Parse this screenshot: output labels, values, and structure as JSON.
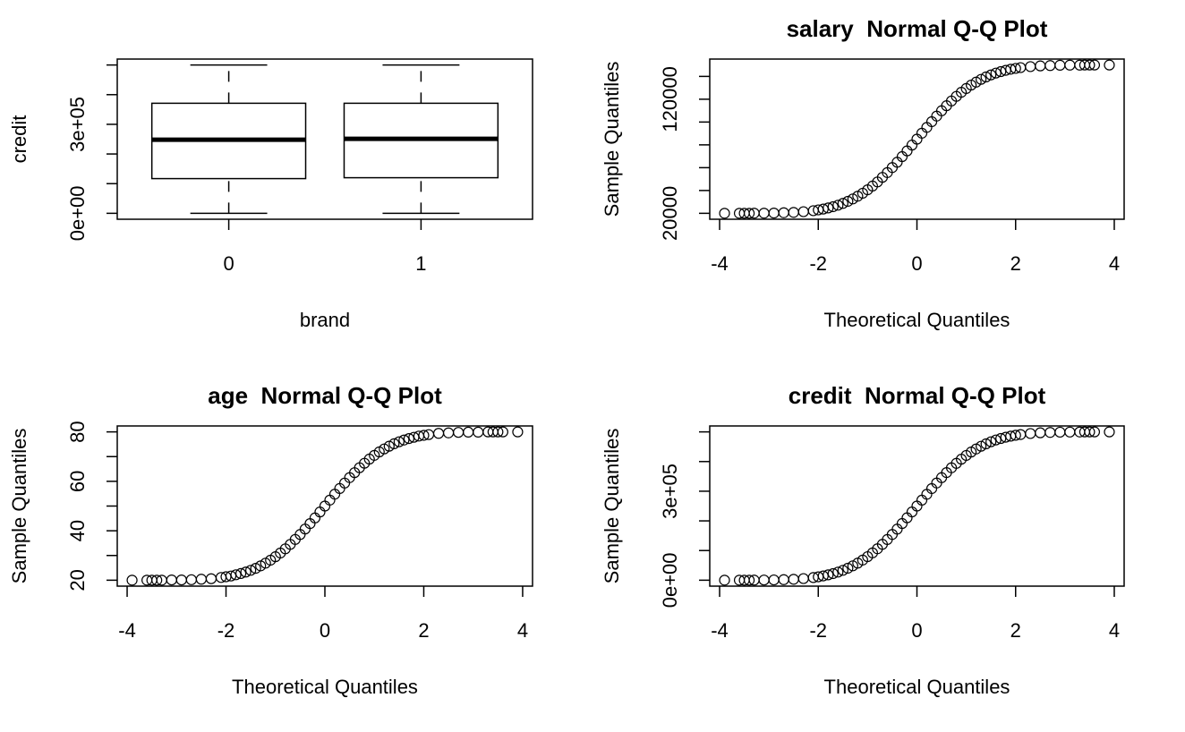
{
  "chart_data": [
    {
      "type": "box",
      "xlabel": "brand",
      "ylabel": "credit",
      "categories": [
        "0",
        "1"
      ],
      "boxes": [
        {
          "min": 0,
          "q1": 117000,
          "median": 248000,
          "q3": 371000,
          "max": 500000
        },
        {
          "min": 0,
          "q1": 120000,
          "median": 251000,
          "q3": 371000,
          "max": 500000
        }
      ],
      "ylim": [
        -20000,
        520000
      ],
      "yticks": [
        {
          "value": 0,
          "label": "0e+00"
        },
        {
          "value": 100000,
          "label": null
        },
        {
          "value": 200000,
          "label": null
        },
        {
          "value": 300000,
          "label": "3e+05"
        },
        {
          "value": 400000,
          "label": null
        },
        {
          "value": 500000,
          "label": null
        }
      ]
    },
    {
      "type": "scatter",
      "title": "salary  Normal Q-Q Plot",
      "xlabel": "Theoretical Quantiles",
      "ylabel": "Sample Quantiles",
      "x": [
        -3.9,
        -3.6,
        -3.5,
        -3.4,
        -3.3,
        -3.1,
        -2.9,
        -2.7,
        -2.5,
        -2.3,
        -2.1,
        -2.0,
        -1.9,
        -1.8,
        -1.7,
        -1.6,
        -1.5,
        -1.4,
        -1.3,
        -1.2,
        -1.1,
        -1.0,
        -0.9,
        -0.8,
        -0.7,
        -0.6,
        -0.5,
        -0.4,
        -0.3,
        -0.2,
        -0.1,
        0,
        0.1,
        0.2,
        0.3,
        0.4,
        0.5,
        0.6,
        0.7,
        0.8,
        0.9,
        1.0,
        1.1,
        1.2,
        1.3,
        1.4,
        1.5,
        1.6,
        1.7,
        1.8,
        1.9,
        2.0,
        2.1,
        2.3,
        2.5,
        2.7,
        2.9,
        3.1,
        3.3,
        3.4,
        3.5,
        3.6,
        3.9
      ],
      "values": [
        20000,
        20000,
        20000,
        20000,
        20100,
        20100,
        20200,
        20500,
        20800,
        21400,
        22300,
        23000,
        23700,
        24700,
        25800,
        27100,
        28700,
        30500,
        32600,
        35000,
        37600,
        40600,
        43900,
        47500,
        51500,
        55700,
        60100,
        64800,
        69700,
        74700,
        79800,
        85000,
        90200,
        95300,
        100300,
        105200,
        109900,
        114300,
        118500,
        122500,
        126100,
        129400,
        132400,
        135000,
        137400,
        139500,
        141300,
        142900,
        144200,
        145300,
        146300,
        147000,
        147700,
        148600,
        149200,
        149500,
        149800,
        149900,
        149900,
        150000,
        150000,
        150000,
        150000
      ],
      "xlim": [
        -4.2,
        4.2
      ],
      "xticks": [
        -4,
        -2,
        0,
        2,
        4
      ],
      "ylim": [
        14800,
        155200
      ],
      "yticks": [
        20000,
        {
          "value": 40000,
          "label": null
        },
        {
          "value": 60000,
          "label": null
        },
        {
          "value": 80000,
          "label": null
        },
        {
          "value": 100000,
          "label": null
        },
        120000,
        {
          "value": 140000,
          "label": null
        }
      ]
    },
    {
      "type": "scatter",
      "title": "age  Normal Q-Q Plot",
      "xlabel": "Theoretical Quantiles",
      "ylabel": "Sample Quantiles",
      "x": [
        -3.9,
        -3.6,
        -3.5,
        -3.4,
        -3.3,
        -3.1,
        -2.9,
        -2.7,
        -2.5,
        -2.3,
        -2.1,
        -2.0,
        -1.9,
        -1.8,
        -1.7,
        -1.6,
        -1.5,
        -1.4,
        -1.3,
        -1.2,
        -1.1,
        -1.0,
        -0.9,
        -0.8,
        -0.7,
        -0.6,
        -0.5,
        -0.4,
        -0.3,
        -0.2,
        -0.1,
        0,
        0.1,
        0.2,
        0.3,
        0.4,
        0.5,
        0.6,
        0.7,
        0.8,
        0.9,
        1.0,
        1.1,
        1.2,
        1.3,
        1.4,
        1.5,
        1.6,
        1.7,
        1.8,
        1.9,
        2.0,
        2.1,
        2.3,
        2.5,
        2.7,
        2.9,
        3.1,
        3.3,
        3.4,
        3.5,
        3.6,
        3.9
      ],
      "values": [
        20,
        20,
        20,
        20,
        20,
        20.1,
        20.1,
        20.2,
        20.4,
        20.6,
        21.1,
        21.4,
        21.7,
        22.2,
        22.7,
        23.3,
        24,
        24.8,
        25.8,
        26.9,
        28.1,
        29.5,
        31,
        32.7,
        34.5,
        36.5,
        38.5,
        40.7,
        42.9,
        45.2,
        47.6,
        50,
        52.4,
        54.8,
        57.1,
        59.3,
        61.5,
        63.5,
        65.5,
        67.3,
        69,
        70.5,
        71.9,
        73.1,
        74.2,
        75.2,
        76,
        76.7,
        77.3,
        77.8,
        78.3,
        78.6,
        78.9,
        79.4,
        79.6,
        79.8,
        79.9,
        79.9,
        80,
        80,
        80,
        80,
        80
      ],
      "xlim": [
        -4.2,
        4.2
      ],
      "xticks": [
        -4,
        -2,
        0,
        2,
        4
      ],
      "ylim": [
        17.6,
        82.4
      ],
      "yticks": [
        20,
        {
          "value": 30,
          "label": null
        },
        40,
        {
          "value": 50,
          "label": null
        },
        60,
        {
          "value": 70,
          "label": null
        },
        80
      ]
    },
    {
      "type": "scatter",
      "title": "credit  Normal Q-Q Plot",
      "xlabel": "Theoretical Quantiles",
      "ylabel": "Sample Quantiles",
      "x": [
        -3.9,
        -3.6,
        -3.5,
        -3.4,
        -3.3,
        -3.1,
        -2.9,
        -2.7,
        -2.5,
        -2.3,
        -2.1,
        -2.0,
        -1.9,
        -1.8,
        -1.7,
        -1.6,
        -1.5,
        -1.4,
        -1.3,
        -1.2,
        -1.1,
        -1.0,
        -0.9,
        -0.8,
        -0.7,
        -0.6,
        -0.5,
        -0.4,
        -0.3,
        -0.2,
        -0.1,
        0,
        0.1,
        0.2,
        0.3,
        0.4,
        0.5,
        0.6,
        0.7,
        0.8,
        0.9,
        1.0,
        1.1,
        1.2,
        1.3,
        1.4,
        1.5,
        1.6,
        1.7,
        1.8,
        1.9,
        2.0,
        2.1,
        2.3,
        2.5,
        2.7,
        2.9,
        3.1,
        3.3,
        3.4,
        3.5,
        3.6,
        3.9
      ],
      "values": [
        0,
        0,
        0,
        0,
        300,
        500,
        1000,
        1800,
        3100,
        5400,
        9000,
        11400,
        14400,
        18000,
        22300,
        27400,
        33400,
        40400,
        48400,
        57600,
        67900,
        79400,
        92100,
        106000,
        121000,
        137200,
        154300,
        172300,
        191100,
        210400,
        230100,
        250000,
        269900,
        289600,
        308900,
        327700,
        345700,
        362800,
        379000,
        394000,
        407900,
        420600,
        432100,
        442400,
        451600,
        459600,
        466600,
        472600,
        477700,
        482000,
        485600,
        488600,
        491000,
        494600,
        496900,
        498200,
        499000,
        499500,
        499700,
        500000,
        500000,
        500000,
        500000
      ],
      "xlim": [
        -4.2,
        4.2
      ],
      "xticks": [
        -4,
        -2,
        0,
        2,
        4
      ],
      "ylim": [
        -20000,
        520000
      ],
      "yticks": [
        {
          "value": 0,
          "label": "0e+00"
        },
        {
          "value": 100000,
          "label": null
        },
        {
          "value": 200000,
          "label": null
        },
        {
          "value": 300000,
          "label": "3e+05"
        },
        {
          "value": 400000,
          "label": null
        },
        {
          "value": 500000,
          "label": null
        }
      ]
    }
  ]
}
